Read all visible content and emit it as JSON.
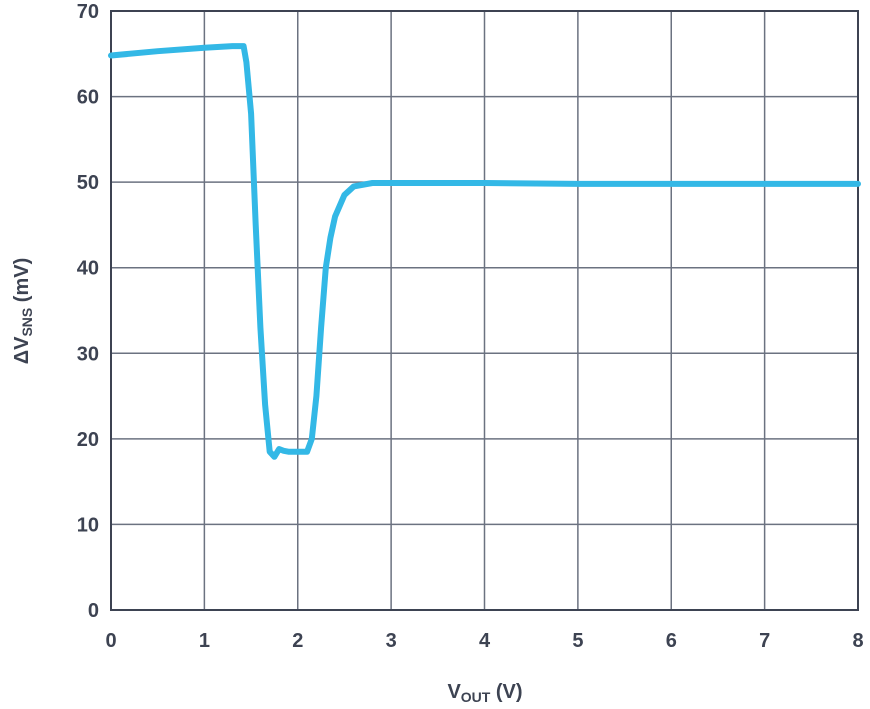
{
  "chart_data": {
    "type": "line",
    "title": "",
    "xlabel": {
      "main": "V",
      "sub": "OUT",
      "unit": " (V)"
    },
    "ylabel": {
      "main": "ΔV",
      "sub": "SNS",
      "unit": " (mV)"
    },
    "xlim": [
      0,
      8
    ],
    "ylim": [
      0,
      70
    ],
    "x_ticks": [
      "0",
      "1",
      "2",
      "3",
      "4",
      "5",
      "6",
      "7",
      "8"
    ],
    "y_ticks": [
      "0",
      "10",
      "20",
      "30",
      "40",
      "50",
      "60",
      "70"
    ],
    "grid": true,
    "colors": {
      "series": "#33b8e6",
      "grid": "#6b7280",
      "text": "#3d4352"
    },
    "series": [
      {
        "x": [
          0,
          0.5,
          1.0,
          1.3,
          1.42,
          1.45,
          1.5,
          1.55,
          1.6,
          1.65,
          1.7,
          1.75,
          1.8,
          1.85,
          1.9,
          2.0,
          2.1,
          2.15,
          2.2,
          2.25,
          2.3,
          2.35,
          2.4,
          2.5,
          2.6,
          2.8,
          3.0,
          4.0,
          5.0,
          6.0,
          7.0,
          8.0
        ],
        "y": [
          64.8,
          65.3,
          65.7,
          65.9,
          65.9,
          64.0,
          58.0,
          45.0,
          33.0,
          24.0,
          18.5,
          17.9,
          18.8,
          18.6,
          18.5,
          18.5,
          18.5,
          20.0,
          25.0,
          33.0,
          40.0,
          43.5,
          46.0,
          48.5,
          49.5,
          49.9,
          49.9,
          49.9,
          49.8,
          49.8,
          49.8,
          49.8
        ]
      }
    ]
  }
}
